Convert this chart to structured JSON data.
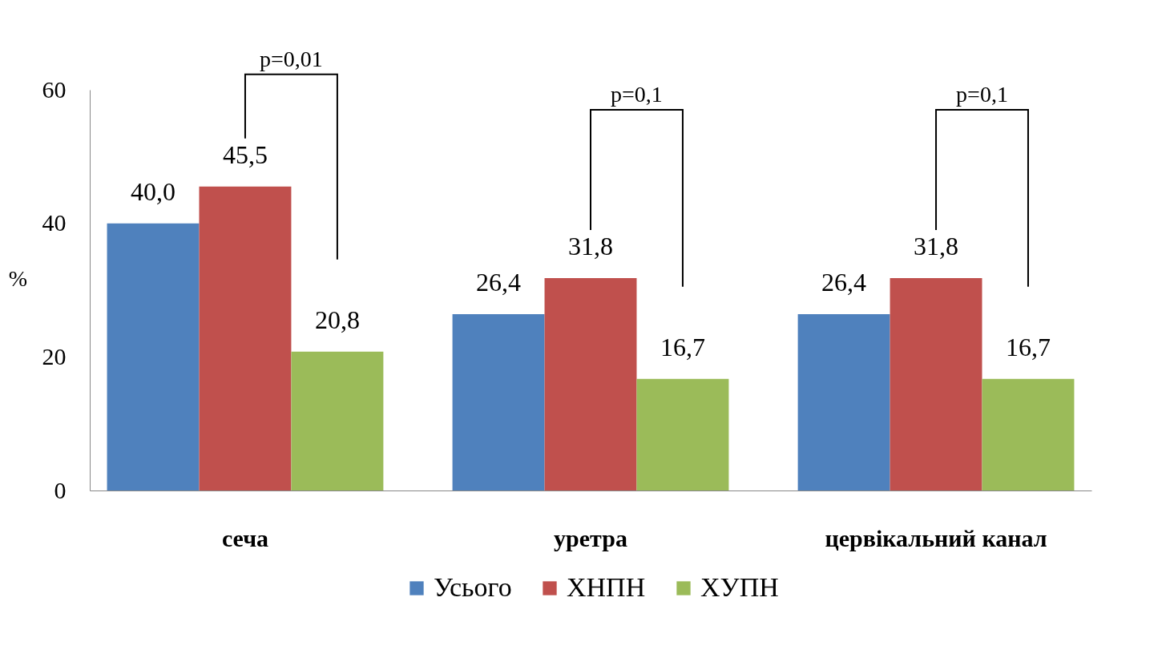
{
  "chart_data": {
    "type": "bar",
    "ylabel": "%",
    "categories": [
      "сеча",
      "уретра",
      "цервікальний канал"
    ],
    "series": [
      {
        "name": "Усього",
        "color": "#4f81bd",
        "values": [
          40.0,
          26.4,
          26.4
        ],
        "value_labels": [
          "40,0",
          "26,4",
          "26,4"
        ]
      },
      {
        "name": "ХНПН",
        "color": "#c0504d",
        "values": [
          45.5,
          31.8,
          31.8
        ],
        "value_labels": [
          "45,5",
          "31,8",
          "31,8"
        ]
      },
      {
        "name": "ХУПН",
        "color": "#9bbb59",
        "values": [
          20.8,
          16.7,
          16.7
        ],
        "value_labels": [
          "20,8",
          "16,7",
          "16,7"
        ]
      }
    ],
    "ylim": [
      0,
      60
    ],
    "yticks": [
      0,
      20,
      40,
      60
    ],
    "grid": false,
    "legend": "bottom",
    "annotations": [
      "p=0,01",
      "p=0,1",
      "p=0,1"
    ]
  }
}
